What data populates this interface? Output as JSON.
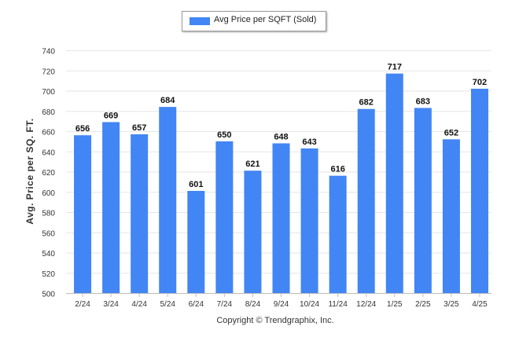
{
  "legend": {
    "label": "Avg Price per SQFT (Sold)"
  },
  "footer": {
    "copyright": "Copyright © Trendgraphix, Inc."
  },
  "chart_data": {
    "type": "bar",
    "title": "",
    "xlabel": "",
    "ylabel": "Avg. Price per SQ. FT.",
    "ylim": [
      500,
      740
    ],
    "yticks": [
      500,
      520,
      540,
      560,
      580,
      600,
      620,
      640,
      660,
      680,
      700,
      720,
      740
    ],
    "grid": true,
    "legend_position": "top-center",
    "color": "#4285f4",
    "categories": [
      "2/24",
      "3/24",
      "4/24",
      "5/24",
      "6/24",
      "7/24",
      "8/24",
      "9/24",
      "10/24",
      "11/24",
      "12/24",
      "1/25",
      "2/25",
      "3/25",
      "4/25"
    ],
    "series": [
      {
        "name": "Avg Price per SQFT (Sold)",
        "values": [
          656,
          669,
          657,
          684,
          601,
          650,
          621,
          648,
          643,
          616,
          682,
          717,
          683,
          652,
          702
        ]
      }
    ]
  }
}
